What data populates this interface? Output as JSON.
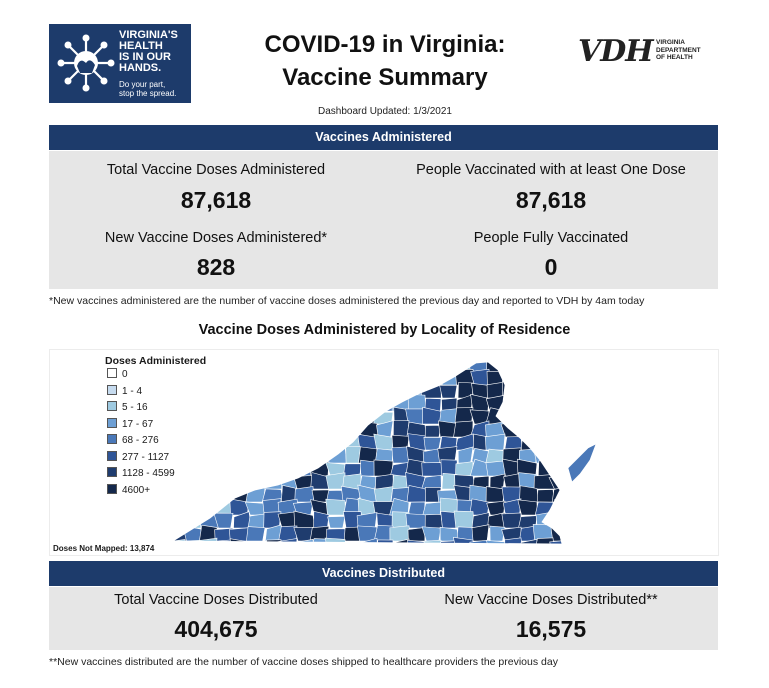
{
  "header": {
    "logo_lines": [
      "VIRGINIA'S",
      "HEALTH",
      "IS IN OUR",
      "HANDS."
    ],
    "logo_tagline": [
      "Do your part,",
      "stop the spread."
    ],
    "title_line1": "COVID-19 in Virginia:",
    "title_line2": "Vaccine Summary",
    "vdh_mark": "VDH",
    "vdh_lines": [
      "VIRGINIA",
      "DEPARTMENT",
      "OF HEALTH"
    ],
    "updated": "Dashboard Updated: 1/3/2021"
  },
  "administered": {
    "bar_label": "Vaccines Administered",
    "total_label": "Total Vaccine Doses Administered",
    "total_value": "87,618",
    "one_dose_label": "People Vaccinated with at least One Dose",
    "one_dose_value": "87,618",
    "new_label": "New Vaccine Doses Administered*",
    "new_value": "828",
    "fully_label": "People Fully Vaccinated",
    "fully_value": "0",
    "footnote": "*New vaccines administered are the number of vaccine doses administered the previous day and reported to VDH by 4am today"
  },
  "map": {
    "title": "Vaccine Doses Administered by Locality of Residence",
    "legend_title": "Doses Administered",
    "legend": [
      {
        "label": "0",
        "color": "#ffffff"
      },
      {
        "label": "1 - 4",
        "color": "#c6dbef"
      },
      {
        "label": "5 - 16",
        "color": "#9ecae1"
      },
      {
        "label": "17 - 67",
        "color": "#6d9fd4"
      },
      {
        "label": "68 - 276",
        "color": "#4a78b8"
      },
      {
        "label": "277 - 1127",
        "color": "#2f5597"
      },
      {
        "label": "1128 - 4599",
        "color": "#1f3c6e"
      },
      {
        "label": "4600+",
        "color": "#14284b"
      }
    ],
    "not_mapped": "Doses Not Mapped: 13,874"
  },
  "distributed": {
    "bar_label": "Vaccines Distributed",
    "total_label": "Total Vaccine Doses Distributed",
    "total_value": "404,675",
    "new_label": "New Vaccine Doses Distributed**",
    "new_value": "16,575",
    "footnote": "**New vaccines distributed are the number of vaccine doses shipped to healthcare providers the previous day"
  }
}
